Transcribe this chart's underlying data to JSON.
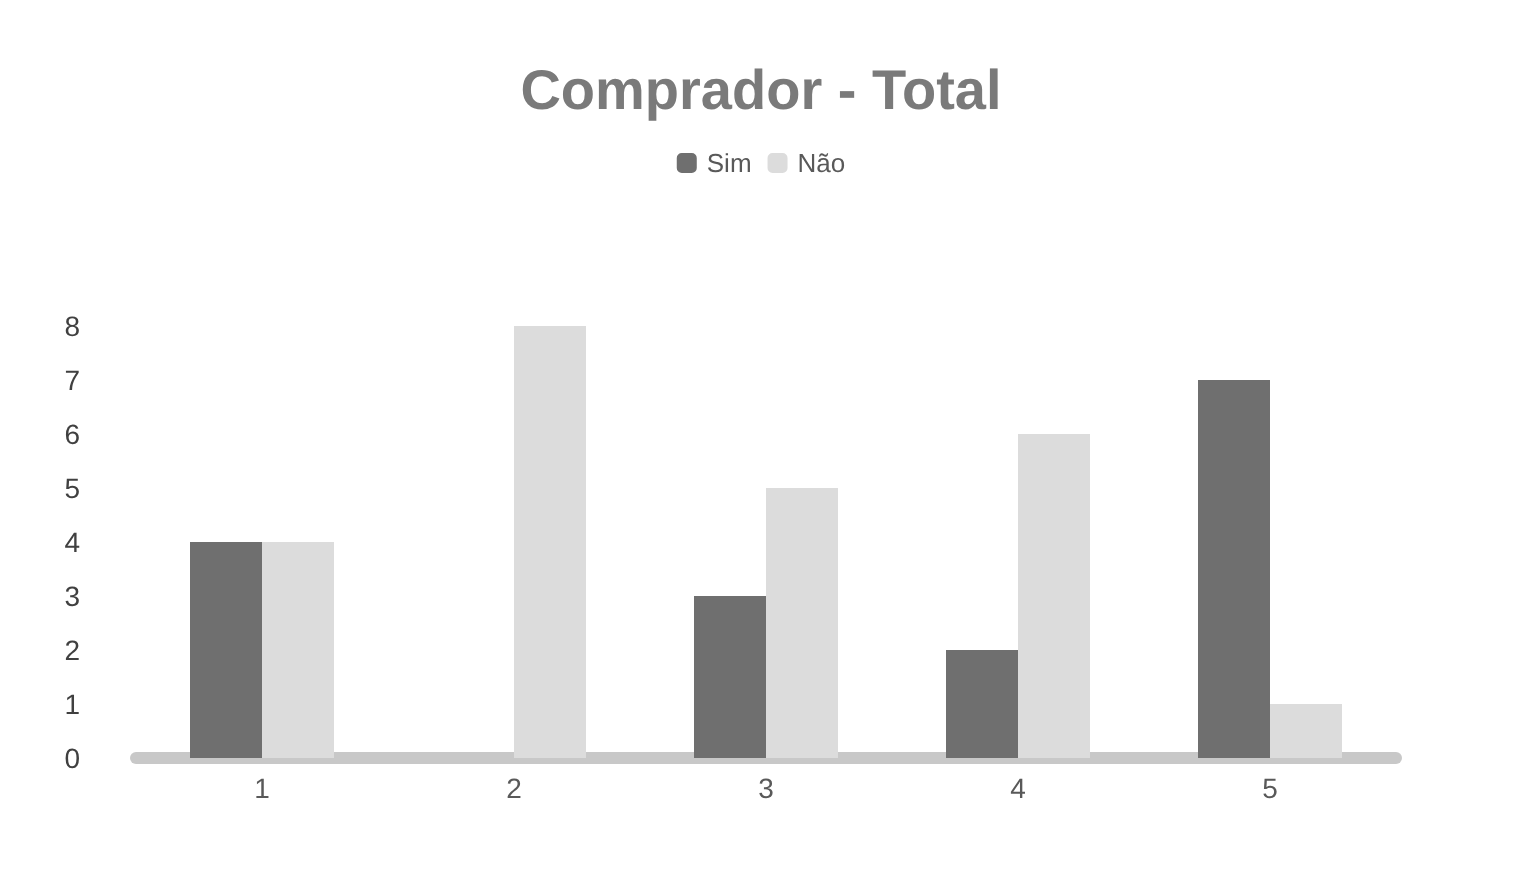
{
  "chart_data": {
    "type": "bar",
    "title": "Comprador - Total",
    "categories": [
      "1",
      "2",
      "3",
      "4",
      "5"
    ],
    "series": [
      {
        "name": "Sim",
        "color": "#6f6f6f",
        "values": [
          4,
          0,
          3,
          2,
          7
        ]
      },
      {
        "name": "Não",
        "color": "#dcdcdc",
        "values": [
          4,
          8,
          5,
          6,
          1
        ]
      }
    ],
    "ylim": [
      0,
      8
    ],
    "yticks": [
      0,
      1,
      2,
      3,
      4,
      5,
      6,
      7,
      8
    ],
    "grid": false,
    "legend": "top"
  }
}
